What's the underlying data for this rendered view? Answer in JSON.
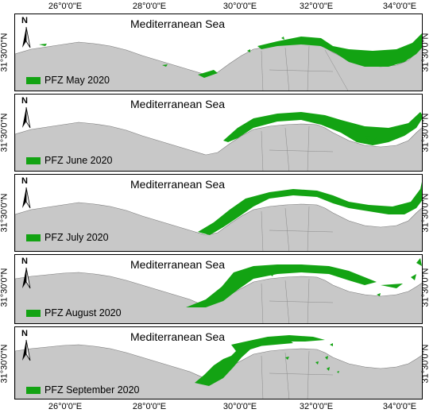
{
  "map": {
    "sea_label": "Mediterranean Sea",
    "north_label": "N",
    "lat_label": "31°30'0\"N",
    "lon_ticks": [
      "26°0'0\"E",
      "28°0'0\"E",
      "30°0'0\"E",
      "32°0'0\"E",
      "34°0'0\"E"
    ],
    "colors": {
      "pfz": "#13a313",
      "land": "#c8c8c8",
      "land_edge": "#7a7a7a",
      "sea": "#ffffff"
    },
    "panels": [
      {
        "legend": "PFZ May 2020"
      },
      {
        "legend": "PFZ June 2020"
      },
      {
        "legend": "PFZ July 2020"
      },
      {
        "legend": "PFZ August 2020"
      },
      {
        "legend": "PFZ September 2020"
      }
    ]
  }
}
